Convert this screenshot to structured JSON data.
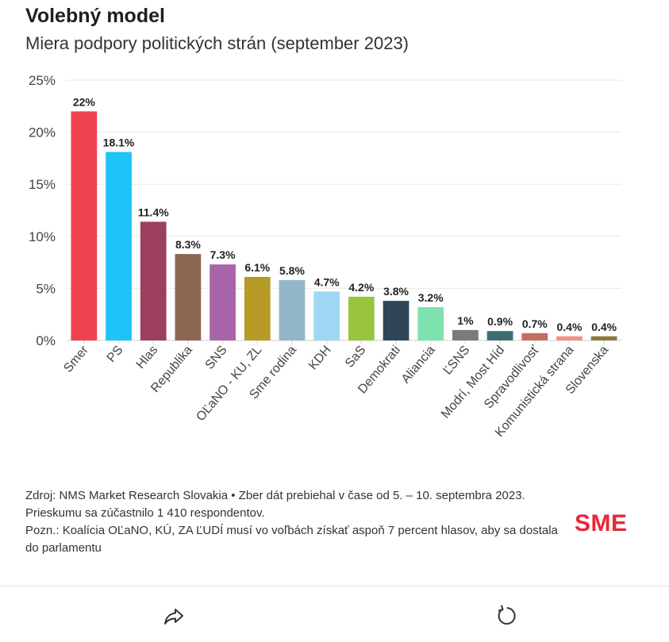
{
  "header": {
    "title": "Volebný model",
    "subtitle": "Miera podpory politických strán (september 2023)"
  },
  "chart_data": {
    "type": "bar",
    "title": "Volebný model",
    "subtitle": "Miera podpory politických strán (september 2023)",
    "categories": [
      "Smer",
      "PS",
      "Hlas",
      "Republika",
      "SNS",
      "OĽaNO - KU, ZL",
      "Sme rodina",
      "KDH",
      "SaS",
      "Demokrati",
      "Aliancia",
      "ĽSNS",
      "Modrí, Most Híd",
      "Spravodlivosť",
      "Komunistická strana",
      "Slovenska"
    ],
    "values": [
      22,
      18.1,
      11.4,
      8.3,
      7.3,
      6.1,
      5.8,
      4.7,
      4.2,
      3.8,
      3.2,
      1,
      0.9,
      0.7,
      0.4,
      0.4
    ],
    "value_labels": [
      "22%",
      "18.1%",
      "11.4%",
      "8.3%",
      "7.3%",
      "6.1%",
      "5.8%",
      "4.7%",
      "4.2%",
      "3.8%",
      "3.2%",
      "1%",
      "0.9%",
      "0.7%",
      "0.4%",
      "0.4%"
    ],
    "colors": [
      "#f0424e",
      "#1ec4f8",
      "#9c3f5e",
      "#8c6650",
      "#a864a8",
      "#b69a26",
      "#93b6c8",
      "#9ed8f4",
      "#98c53c",
      "#2e4658",
      "#7ee2ae",
      "#7a7a7a",
      "#3d6f72",
      "#c46f5f",
      "#f09284",
      "#8c7c3a"
    ],
    "ylim": [
      0,
      25
    ],
    "yticks": [
      0,
      5,
      10,
      15,
      20,
      25
    ],
    "ytick_labels": [
      "0%",
      "5%",
      "10%",
      "15%",
      "20%",
      "25%"
    ],
    "xlabel": "",
    "ylabel": "",
    "grid": true
  },
  "footer": {
    "source": "Zdroj: NMS Market Research Slovakia • Zber dát prebiehal v čase od 5. – 10. septembra 2023. Prieskumu sa zúčastnilo 1 410 respondentov.",
    "note": "Pozn.: Koalícia OĽaNO, KÚ, ZA ĽUDÍ musí vo voľbách získať aspoň 7 percent hlasov, aby sa dostala do parlamentu",
    "logo": "SME"
  },
  "toolbar": {
    "share_icon": "share-icon",
    "refresh_icon": "refresh-icon"
  }
}
